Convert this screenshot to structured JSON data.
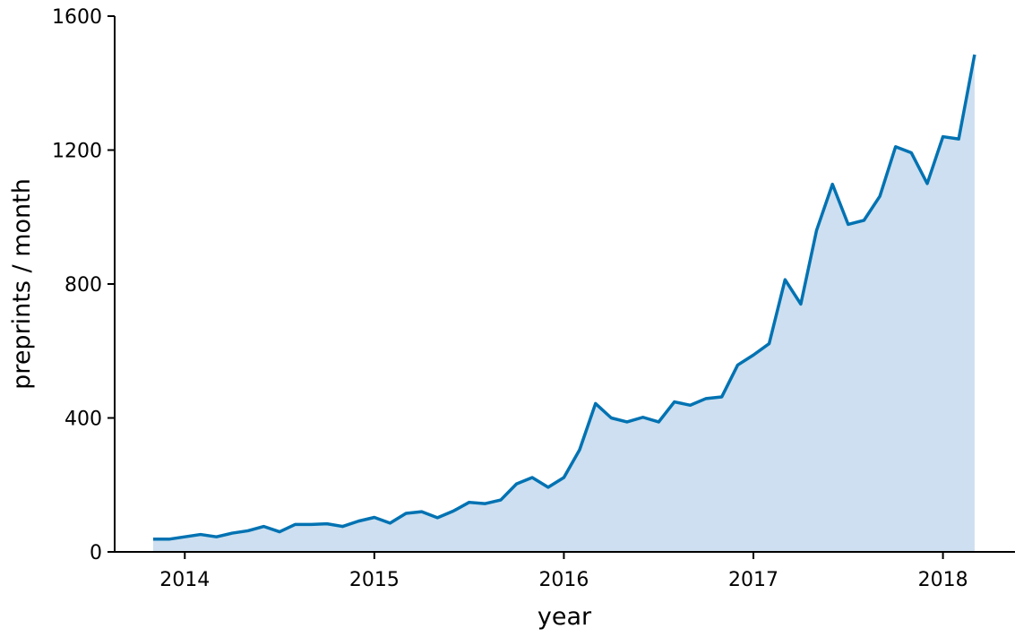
{
  "chart_data": {
    "type": "area",
    "xlabel": "year",
    "ylabel": "preprints / month",
    "x": [
      2013.833,
      2013.917,
      2014.0,
      2014.083,
      2014.167,
      2014.25,
      2014.333,
      2014.417,
      2014.5,
      2014.583,
      2014.667,
      2014.75,
      2014.833,
      2014.917,
      2015.0,
      2015.083,
      2015.167,
      2015.25,
      2015.333,
      2015.417,
      2015.5,
      2015.583,
      2015.667,
      2015.75,
      2015.833,
      2015.917,
      2016.0,
      2016.083,
      2016.167,
      2016.25,
      2016.333,
      2016.417,
      2016.5,
      2016.583,
      2016.667,
      2016.75,
      2016.833,
      2016.917,
      2017.0,
      2017.083,
      2017.167,
      2017.25,
      2017.333,
      2017.417,
      2017.5,
      2017.583,
      2017.667,
      2017.75,
      2017.833,
      2017.917,
      2018.0,
      2018.083,
      2018.167
    ],
    "series": [
      {
        "color": "#0072b2",
        "fill": "#cddff0",
        "values": [
          38,
          38,
          45,
          52,
          45,
          56,
          63,
          76,
          60,
          82,
          82,
          84,
          76,
          92,
          103,
          86,
          115,
          120,
          102,
          122,
          148,
          144,
          155,
          203,
          222,
          193,
          222,
          305,
          443,
          400,
          388,
          402,
          388,
          448,
          438,
          458,
          463,
          558,
          588,
          622,
          813,
          740,
          960,
          1098,
          978,
          990,
          1062,
          1210,
          1192,
          1100,
          1240,
          1233,
          1485
        ]
      }
    ],
    "xlim": [
      2013.63,
      2018.38
    ],
    "xticks": [
      2014,
      2015,
      2016,
      2017,
      2018
    ],
    "ylim": [
      0,
      1600
    ],
    "yticks": [
      0,
      400,
      800,
      1200,
      1600
    ]
  }
}
